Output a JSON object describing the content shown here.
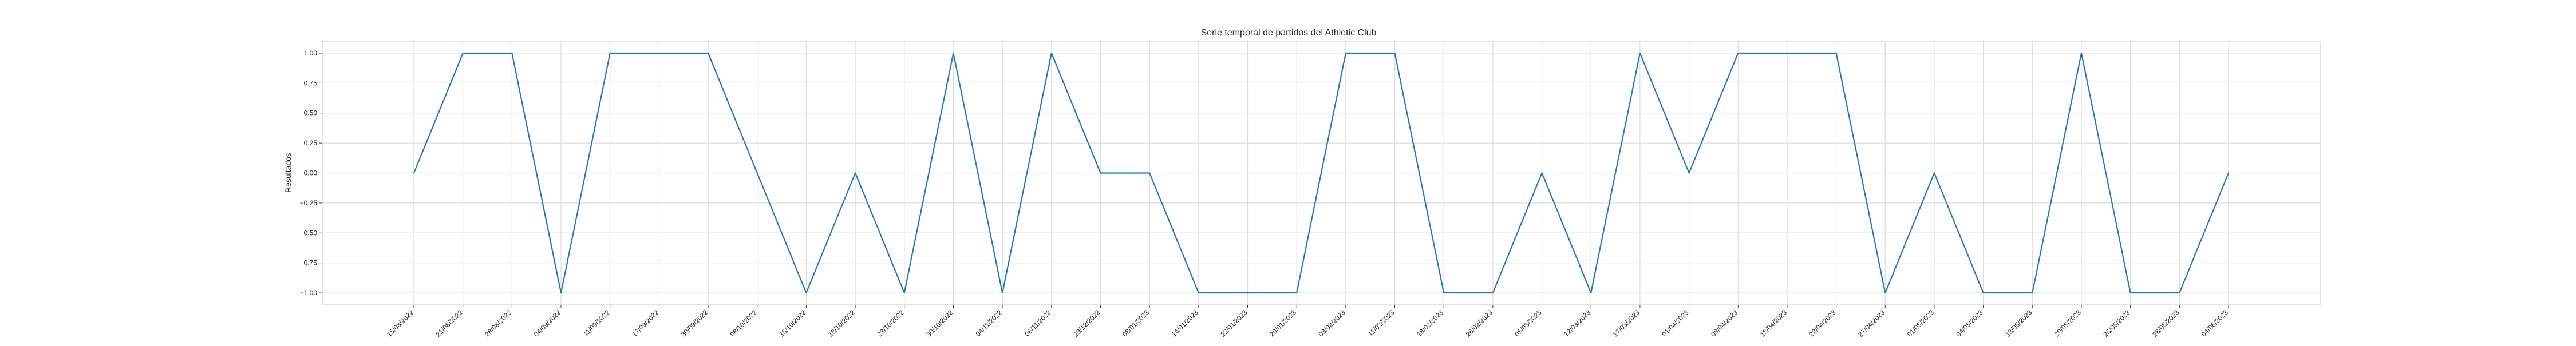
{
  "chart_data": {
    "type": "line",
    "title": "Serie temporal de partidos del Athletic Club",
    "xlabel": "",
    "ylabel": "Resultados",
    "ylim": [
      -1.1,
      1.1
    ],
    "yticks": [
      -1.0,
      -0.75,
      -0.5,
      -0.25,
      0.0,
      0.25,
      0.5,
      0.75,
      1.0
    ],
    "ytick_labels": [
      "−1.00",
      "−0.75",
      "−0.50",
      "−0.25",
      "0.00",
      "0.25",
      "0.50",
      "0.75",
      "1.00"
    ],
    "grid": true,
    "categories": [
      "15/08/2022",
      "21/08/2022",
      "28/08/2022",
      "04/09/2022",
      "11/09/2022",
      "17/09/2022",
      "30/09/2022",
      "08/10/2022",
      "15/10/2022",
      "18/10/2022",
      "23/10/2022",
      "30/10/2022",
      "04/11/2022",
      "08/11/2022",
      "29/12/2022",
      "08/01/2023",
      "14/01/2023",
      "22/01/2023",
      "29/01/2023",
      "03/02/2023",
      "11/02/2023",
      "18/02/2023",
      "26/02/2023",
      "05/03/2023",
      "12/03/2023",
      "17/03/2023",
      "01/04/2023",
      "08/04/2023",
      "15/04/2023",
      "22/04/2023",
      "27/04/2023",
      "01/05/2023",
      "04/05/2023",
      "13/05/2023",
      "20/05/2023",
      "25/05/2023",
      "28/05/2023",
      "04/06/2023"
    ],
    "series": [
      {
        "name": "",
        "color": "#1f77b4",
        "values": [
          0,
          1,
          1,
          -1,
          1,
          1,
          1,
          0,
          -1,
          0,
          -1,
          1,
          -1,
          1,
          0,
          0,
          -1,
          -1,
          -1,
          1,
          1,
          -1,
          -1,
          0,
          -1,
          1,
          0,
          1,
          1,
          1,
          -1,
          0,
          -1,
          -1,
          1,
          -1,
          -1,
          0
        ]
      }
    ]
  }
}
